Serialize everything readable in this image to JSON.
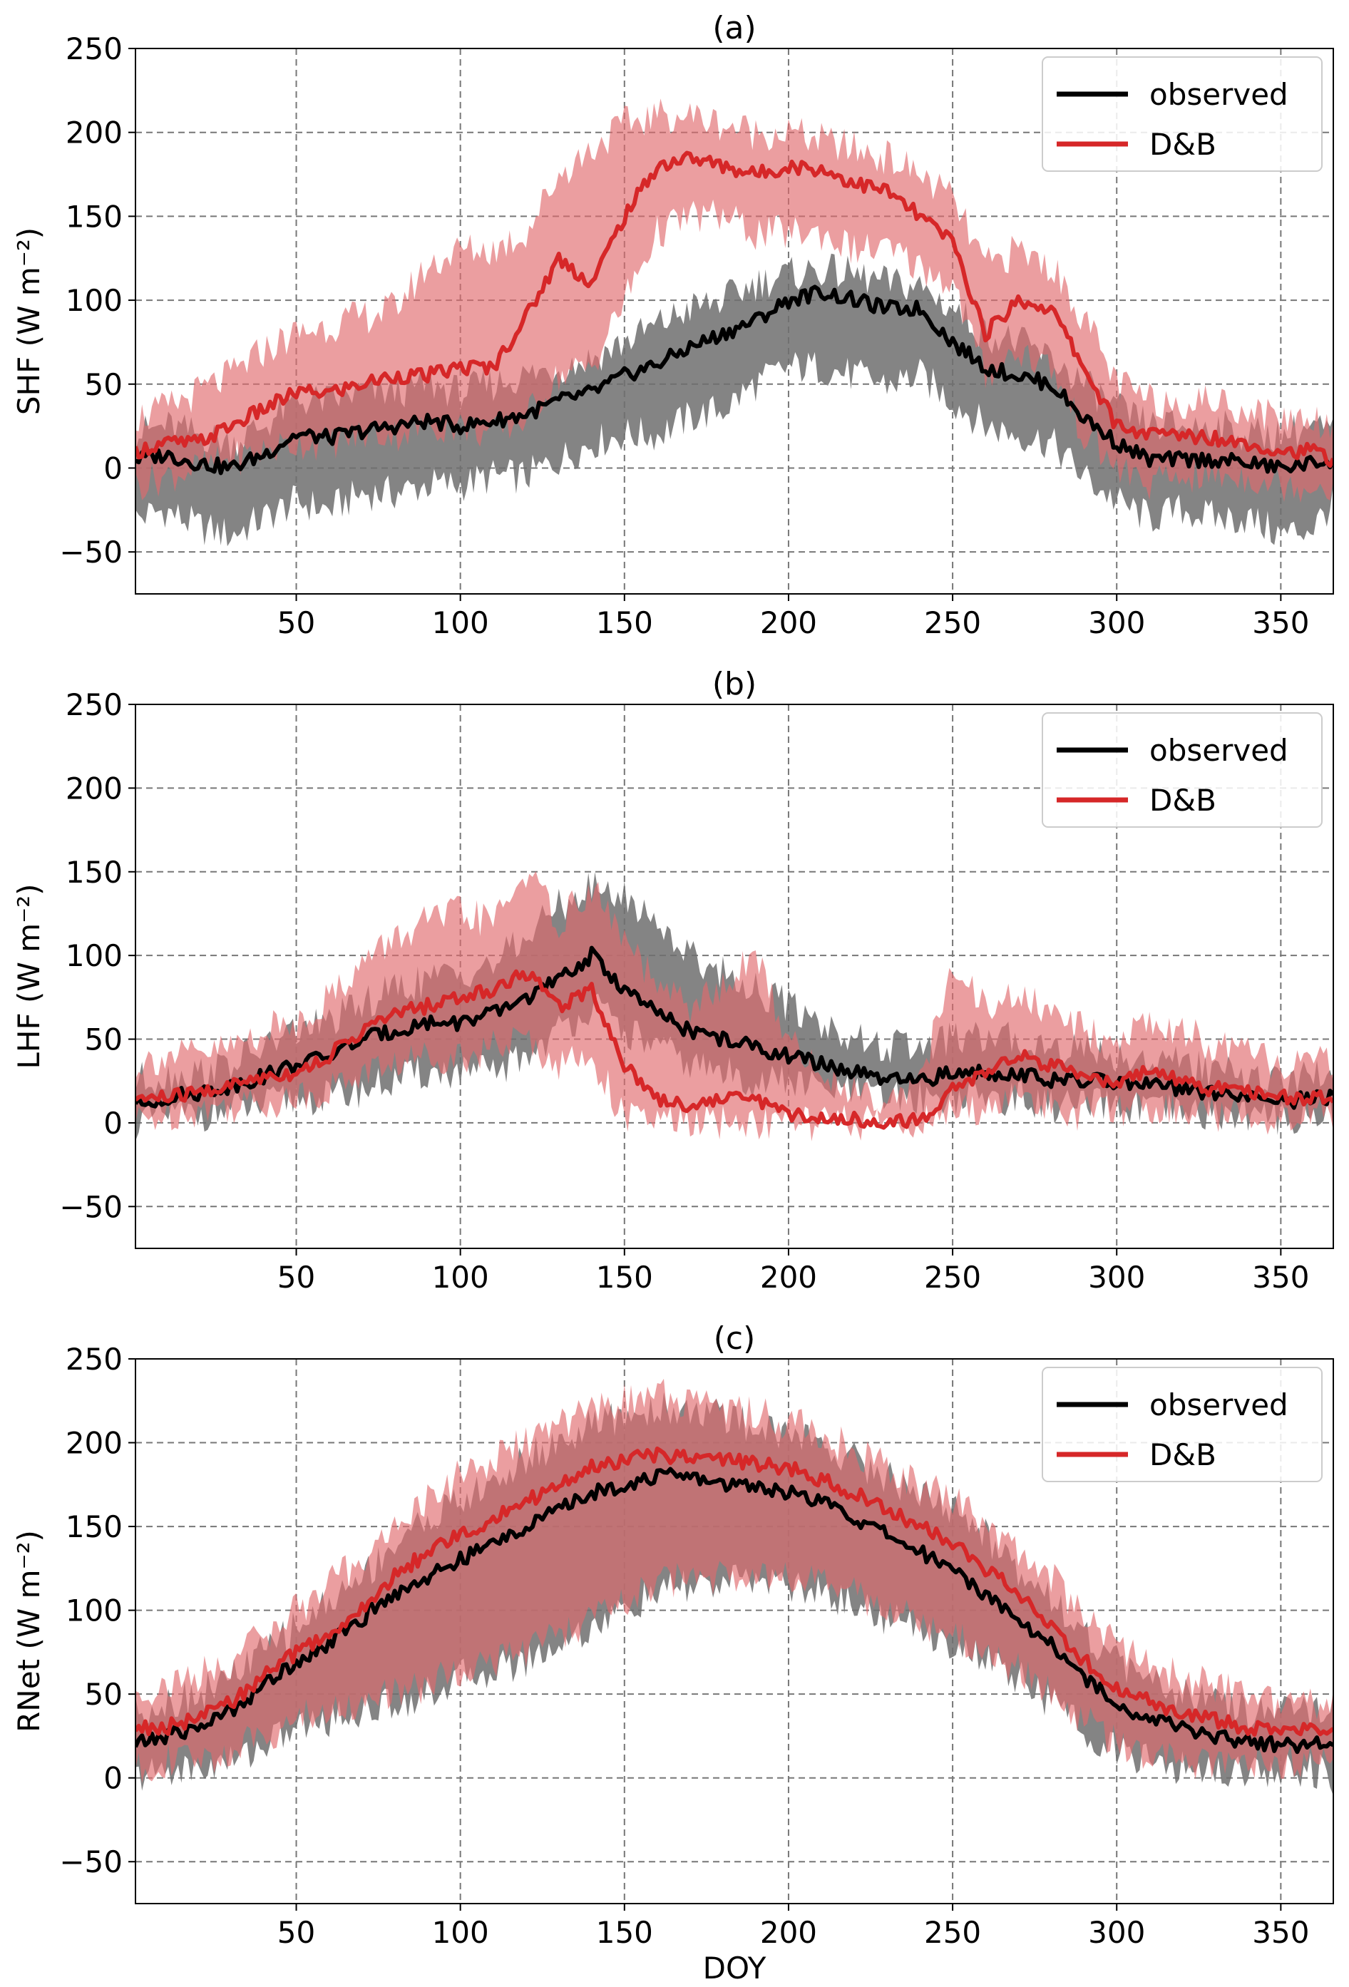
{
  "figure": {
    "xlabel": "DOY",
    "colors": {
      "observed_line": "#000000",
      "observed_band": "#6e6e6e",
      "db_line": "#d62728",
      "db_band": "#e06a6d",
      "grid": "#777777"
    }
  },
  "chart_data": [
    {
      "type": "line",
      "title": "(a)",
      "ylabel": "SHF (W m⁻²)",
      "xlabel": "",
      "xlim": [
        1,
        366
      ],
      "ylim": [
        -75,
        250
      ],
      "xticks": [
        50,
        100,
        150,
        200,
        250,
        300,
        350
      ],
      "yticks": [
        -50,
        0,
        50,
        100,
        150,
        200,
        250
      ],
      "grid": true,
      "legend_position": "top-right",
      "series": [
        {
          "name": "observed",
          "color": "#000000",
          "band_color": "#6e6e6e",
          "x": [
            1,
            10,
            20,
            30,
            40,
            50,
            60,
            70,
            80,
            90,
            100,
            110,
            120,
            130,
            140,
            150,
            160,
            170,
            180,
            190,
            200,
            210,
            220,
            230,
            240,
            250,
            260,
            270,
            280,
            290,
            300,
            310,
            320,
            330,
            340,
            350,
            360,
            366
          ],
          "mean": [
            5,
            8,
            3,
            0,
            8,
            20,
            18,
            22,
            25,
            28,
            25,
            28,
            32,
            40,
            45,
            55,
            62,
            72,
            80,
            88,
            100,
            105,
            100,
            95,
            95,
            75,
            60,
            55,
            50,
            30,
            15,
            5,
            5,
            5,
            3,
            0,
            3,
            5
          ],
          "lower": [
            -30,
            -25,
            -35,
            -40,
            -30,
            -20,
            -25,
            -15,
            -15,
            -10,
            -10,
            -5,
            -5,
            5,
            15,
            20,
            20,
            30,
            35,
            50,
            60,
            60,
            55,
            50,
            55,
            40,
            25,
            20,
            15,
            -5,
            -20,
            -30,
            -25,
            -30,
            -30,
            -40,
            -35,
            -20
          ],
          "upper": [
            20,
            25,
            20,
            15,
            25,
            40,
            40,
            45,
            45,
            50,
            45,
            50,
            55,
            60,
            65,
            75,
            85,
            95,
            100,
            110,
            115,
            118,
            115,
            110,
            108,
            95,
            80,
            75,
            65,
            50,
            35,
            25,
            25,
            25,
            20,
            20,
            25,
            20
          ]
        },
        {
          "name": "D&B",
          "color": "#d62728",
          "band_color": "#e06a6d",
          "x": [
            1,
            10,
            20,
            30,
            40,
            50,
            60,
            70,
            80,
            90,
            100,
            110,
            120,
            130,
            140,
            150,
            160,
            170,
            180,
            190,
            200,
            210,
            220,
            230,
            240,
            250,
            260,
            270,
            280,
            290,
            300,
            310,
            320,
            330,
            340,
            350,
            360,
            366
          ],
          "mean": [
            10,
            15,
            15,
            25,
            35,
            45,
            45,
            50,
            55,
            55,
            60,
            60,
            90,
            125,
            110,
            150,
            180,
            185,
            180,
            175,
            180,
            178,
            170,
            165,
            150,
            135,
            80,
            100,
            95,
            60,
            25,
            20,
            20,
            18,
            15,
            10,
            10,
            5
          ],
          "lower": [
            -10,
            -5,
            0,
            5,
            10,
            15,
            15,
            20,
            20,
            25,
            25,
            20,
            30,
            55,
            60,
            100,
            140,
            150,
            150,
            140,
            140,
            140,
            130,
            130,
            120,
            110,
            55,
            70,
            60,
            20,
            0,
            -10,
            -5,
            -5,
            -5,
            -10,
            -10,
            -10
          ],
          "upper": [
            30,
            35,
            45,
            55,
            70,
            80,
            85,
            90,
            95,
            120,
            130,
            130,
            140,
            175,
            190,
            205,
            210,
            210,
            205,
            200,
            200,
            195,
            190,
            185,
            175,
            160,
            120,
            130,
            120,
            90,
            50,
            40,
            40,
            40,
            35,
            30,
            30,
            25
          ]
        }
      ]
    },
    {
      "type": "line",
      "title": "(b)",
      "ylabel": "LHF (W m⁻²)",
      "xlabel": "",
      "xlim": [
        1,
        366
      ],
      "ylim": [
        -75,
        250
      ],
      "xticks": [
        50,
        100,
        150,
        200,
        250,
        300,
        350
      ],
      "yticks": [
        -50,
        0,
        50,
        100,
        150,
        200,
        250
      ],
      "grid": true,
      "legend_position": "top-right",
      "series": [
        {
          "name": "observed",
          "color": "#000000",
          "band_color": "#6e6e6e",
          "x": [
            1,
            10,
            20,
            30,
            40,
            50,
            60,
            70,
            80,
            90,
            100,
            110,
            120,
            130,
            140,
            150,
            160,
            170,
            180,
            190,
            200,
            210,
            220,
            230,
            240,
            250,
            260,
            270,
            280,
            290,
            300,
            310,
            320,
            330,
            340,
            350,
            360,
            366
          ],
          "mean": [
            10,
            15,
            18,
            22,
            28,
            35,
            40,
            50,
            55,
            60,
            60,
            65,
            75,
            85,
            100,
            80,
            65,
            55,
            50,
            45,
            40,
            35,
            30,
            25,
            25,
            30,
            30,
            30,
            25,
            25,
            25,
            22,
            20,
            18,
            15,
            12,
            15,
            15
          ],
          "lower": [
            0,
            5,
            5,
            8,
            10,
            15,
            15,
            20,
            25,
            30,
            30,
            30,
            40,
            55,
            70,
            55,
            45,
            35,
            30,
            25,
            25,
            20,
            18,
            15,
            15,
            15,
            15,
            15,
            10,
            10,
            10,
            8,
            5,
            5,
            5,
            3,
            5,
            5
          ],
          "upper": [
            25,
            28,
            30,
            35,
            45,
            55,
            60,
            70,
            80,
            85,
            90,
            95,
            110,
            130,
            140,
            135,
            120,
            100,
            90,
            80,
            70,
            60,
            50,
            45,
            45,
            50,
            50,
            50,
            45,
            45,
            40,
            38,
            35,
            30,
            28,
            25,
            28,
            30
          ]
        },
        {
          "name": "D&B",
          "color": "#d62728",
          "band_color": "#e06a6d",
          "x": [
            1,
            10,
            20,
            30,
            40,
            50,
            60,
            70,
            80,
            90,
            100,
            110,
            120,
            130,
            140,
            150,
            160,
            170,
            180,
            190,
            200,
            210,
            220,
            230,
            240,
            250,
            260,
            270,
            280,
            290,
            300,
            310,
            320,
            330,
            340,
            350,
            360,
            366
          ],
          "mean": [
            15,
            15,
            18,
            22,
            28,
            30,
            40,
            55,
            65,
            70,
            75,
            80,
            90,
            70,
            80,
            35,
            15,
            10,
            15,
            15,
            5,
            3,
            2,
            1,
            1,
            20,
            30,
            40,
            35,
            25,
            25,
            30,
            25,
            20,
            20,
            15,
            15,
            15
          ],
          "lower": [
            0,
            5,
            8,
            10,
            12,
            15,
            20,
            30,
            35,
            40,
            40,
            45,
            50,
            35,
            40,
            3,
            1,
            0,
            0,
            0,
            0,
            0,
            0,
            0,
            0,
            5,
            10,
            15,
            10,
            5,
            8,
            10,
            8,
            5,
            5,
            3,
            5,
            5
          ],
          "upper": [
            35,
            40,
            40,
            45,
            55,
            60,
            75,
            95,
            110,
            120,
            125,
            120,
            150,
            120,
            140,
            110,
            80,
            70,
            80,
            100,
            50,
            30,
            20,
            15,
            25,
            90,
            70,
            75,
            65,
            55,
            50,
            60,
            55,
            45,
            40,
            35,
            35,
            35
          ]
        }
      ]
    },
    {
      "type": "line",
      "title": "(c)",
      "ylabel": "RNet (W m⁻²)",
      "xlabel": "DOY",
      "xlim": [
        1,
        366
      ],
      "ylim": [
        -75,
        250
      ],
      "xticks": [
        50,
        100,
        150,
        200,
        250,
        300,
        350
      ],
      "yticks": [
        -50,
        0,
        50,
        100,
        150,
        200,
        250
      ],
      "grid": true,
      "legend_position": "top-right",
      "series": [
        {
          "name": "observed",
          "color": "#000000",
          "band_color": "#6e6e6e",
          "x": [
            1,
            10,
            20,
            30,
            40,
            50,
            60,
            70,
            80,
            90,
            100,
            110,
            120,
            130,
            140,
            150,
            160,
            170,
            180,
            190,
            200,
            210,
            220,
            230,
            240,
            250,
            260,
            270,
            280,
            290,
            300,
            310,
            320,
            330,
            340,
            350,
            360,
            366
          ],
          "mean": [
            20,
            25,
            30,
            40,
            55,
            70,
            80,
            95,
            110,
            120,
            130,
            140,
            150,
            160,
            170,
            175,
            180,
            180,
            175,
            175,
            170,
            165,
            155,
            145,
            135,
            125,
            110,
            95,
            80,
            60,
            45,
            35,
            30,
            25,
            22,
            20,
            20,
            20
          ],
          "lower": [
            0,
            5,
            5,
            10,
            20,
            30,
            35,
            40,
            45,
            50,
            60,
            65,
            70,
            80,
            90,
            100,
            110,
            115,
            115,
            120,
            115,
            110,
            105,
            95,
            90,
            80,
            70,
            60,
            45,
            30,
            15,
            10,
            5,
            5,
            5,
            5,
            5,
            0
          ],
          "upper": [
            40,
            45,
            50,
            60,
            75,
            90,
            105,
            120,
            140,
            155,
            165,
            175,
            190,
            200,
            210,
            215,
            220,
            220,
            215,
            210,
            205,
            200,
            190,
            180,
            170,
            160,
            145,
            125,
            110,
            85,
            70,
            55,
            50,
            45,
            40,
            38,
            38,
            40
          ]
        },
        {
          "name": "D&B",
          "color": "#d62728",
          "band_color": "#e06a6d",
          "x": [
            1,
            10,
            20,
            30,
            40,
            50,
            60,
            70,
            80,
            90,
            100,
            110,
            120,
            130,
            140,
            150,
            160,
            170,
            180,
            190,
            200,
            210,
            220,
            230,
            240,
            250,
            260,
            270,
            280,
            290,
            300,
            310,
            320,
            330,
            340,
            350,
            360,
            366
          ],
          "mean": [
            30,
            30,
            35,
            45,
            60,
            75,
            85,
            100,
            120,
            135,
            145,
            155,
            165,
            175,
            185,
            190,
            192,
            192,
            190,
            188,
            185,
            178,
            170,
            160,
            150,
            140,
            125,
            110,
            90,
            70,
            55,
            45,
            40,
            35,
            30,
            28,
            28,
            28
          ],
          "lower": [
            5,
            10,
            10,
            15,
            25,
            35,
            40,
            45,
            50,
            55,
            65,
            70,
            75,
            85,
            95,
            105,
            115,
            120,
            120,
            125,
            120,
            115,
            110,
            100,
            95,
            85,
            75,
            65,
            50,
            35,
            20,
            15,
            10,
            10,
            10,
            10,
            10,
            5
          ],
          "upper": [
            50,
            55,
            60,
            70,
            85,
            100,
            115,
            130,
            150,
            165,
            180,
            190,
            200,
            210,
            220,
            225,
            228,
            225,
            222,
            218,
            212,
            205,
            195,
            185,
            175,
            165,
            150,
            135,
            120,
            95,
            80,
            65,
            60,
            55,
            50,
            45,
            45,
            45
          ]
        }
      ]
    }
  ]
}
